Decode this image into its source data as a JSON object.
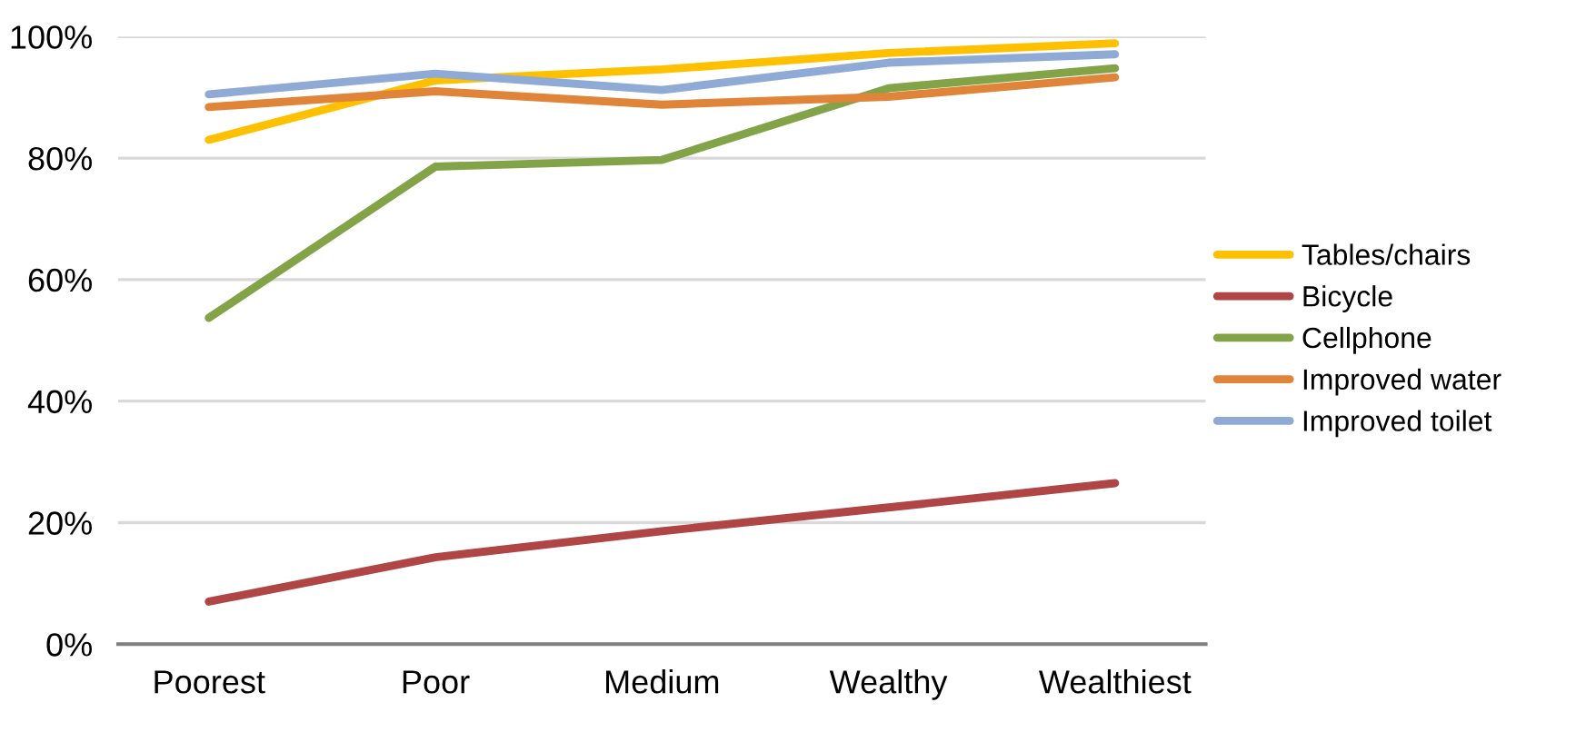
{
  "chart_data": {
    "type": "line",
    "categories": [
      "Poorest",
      "Poor",
      "Medium",
      "Wealthy",
      "Wealthiest"
    ],
    "series": [
      {
        "name": "Tables/chairs",
        "color": "#ffc000",
        "values": [
          83,
          92.8,
          94.6,
          97.3,
          98.9
        ]
      },
      {
        "name": "Bicycle",
        "color": "#b04545",
        "values": [
          7,
          14.3,
          18.6,
          22.5,
          26.5
        ]
      },
      {
        "name": "Cellphone",
        "color": "#82a348",
        "values": [
          53.7,
          78.6,
          79.7,
          91.5,
          94.8
        ]
      },
      {
        "name": "Improved water",
        "color": "#df8439",
        "values": [
          88.4,
          91,
          88.8,
          90.1,
          93.3
        ]
      },
      {
        "name": "Improved toilet",
        "color": "#8faad4",
        "values": [
          90.5,
          93.9,
          91.2,
          95.7,
          97.1
        ]
      }
    ],
    "ylim": [
      0,
      100
    ],
    "yticks": [
      {
        "value": 0,
        "label": "0%"
      },
      {
        "value": 20,
        "label": "20%"
      },
      {
        "value": 40,
        "label": "40%"
      },
      {
        "value": 60,
        "label": "60%"
      },
      {
        "value": 80,
        "label": "80%"
      },
      {
        "value": 100,
        "label": "100%"
      }
    ],
    "grid": "y",
    "legend": "right",
    "marker": "none",
    "line_style": "solid"
  }
}
